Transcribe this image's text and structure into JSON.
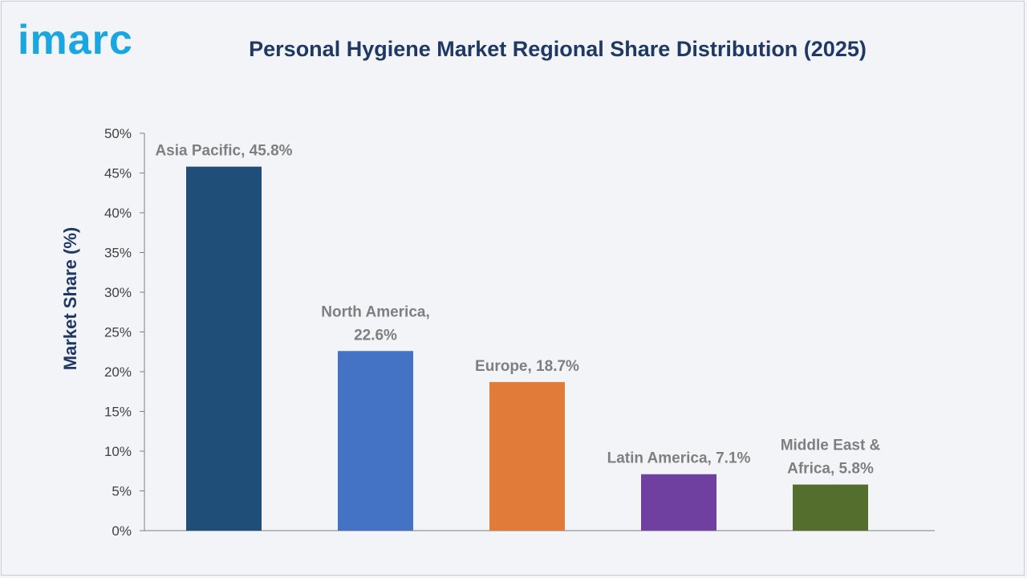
{
  "header": {
    "logo_text": "imarc",
    "title": "Personal Hygiene Market Regional Share Distribution (2025)"
  },
  "chart_data": {
    "type": "bar",
    "title": "Personal Hygiene Market Regional Share Distribution (2025)",
    "xlabel": "",
    "ylabel": "Market Share (%)",
    "ylim": [
      0,
      50
    ],
    "ytick_step": 5,
    "ytick_labels": [
      "0%",
      "5%",
      "10%",
      "15%",
      "20%",
      "25%",
      "30%",
      "35%",
      "40%",
      "45%",
      "50%"
    ],
    "grid": false,
    "legend": "none",
    "categories": [
      "Asia Pacific",
      "North America",
      "Europe",
      "Latin America",
      "Middle East & Africa"
    ],
    "values": [
      45.8,
      22.6,
      18.7,
      7.1,
      5.8
    ],
    "data_labels": [
      [
        "Asia Pacific, 45.8%"
      ],
      [
        "North America,",
        "22.6%"
      ],
      [
        "Europe, 18.7%"
      ],
      [
        "Latin America, 7.1%"
      ],
      [
        "Middle East &",
        "Africa, 5.8%"
      ]
    ],
    "colors": [
      "#1f4e79",
      "#4472c4",
      "#e07b39",
      "#7040a0",
      "#546e2e"
    ]
  }
}
